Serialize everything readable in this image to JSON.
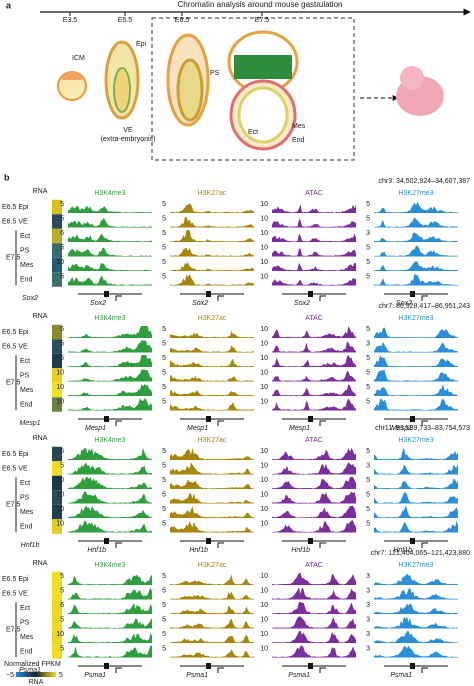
{
  "panel_a": {
    "label": "a",
    "title": "Chromatin analysis around mouse gastrulation",
    "stages": [
      "E3.5",
      "E5.5",
      "E6.5",
      "E7.5"
    ],
    "icm": "ICM",
    "epi": "Epi",
    "ve": [
      "VE",
      "(extra-embryonic)"
    ],
    "ps": "PS",
    "ect": "Ect",
    "mes": "Mes",
    "end": "End"
  },
  "panel_b": {
    "label": "b",
    "rna": "RNA",
    "columns": [
      {
        "name": "H3K4me3",
        "color": "#2e9e3e"
      },
      {
        "name": "H3K27ac",
        "color": "#a8860c"
      },
      {
        "name": "ATAC",
        "color": "#7b2f9e"
      },
      {
        "name": "H3K27me3",
        "color": "#2a8fd8"
      }
    ],
    "rows": [
      "E6.5 Epi",
      "E6.5 VE",
      "Ect",
      "PS",
      "Mes",
      "End"
    ],
    "group": "E7.5",
    "blocks": [
      {
        "locus": "chr3: 34,502,924–34,607,387",
        "gene": "Sox2",
        "rna_colors": [
          "#d8c21a",
          "#2c4a5a",
          "#b8b02a",
          "#3a6a6a",
          "#1f5e74",
          "#3c7070"
        ],
        "scales": [
          [
            5,
            5,
            6,
            5,
            10,
            5
          ],
          [
            5,
            5,
            5,
            5,
            5,
            5
          ],
          [
            10,
            10,
            10,
            10,
            10,
            10
          ],
          [
            5,
            5,
            3,
            5,
            5,
            5
          ]
        ]
      },
      {
        "locus": "chr7: 86,928,417–86,951,243",
        "gene": "Mesp1",
        "rna_colors": [
          "#8a8a2a",
          "#2e4e5e",
          "#1f3a4a",
          "#e8d21a",
          "#f2e022",
          "#6a8040"
        ],
        "scales": [
          [
            5,
            5,
            5,
            10,
            10,
            10
          ],
          [
            5,
            5,
            5,
            5,
            5,
            5
          ],
          [
            10,
            10,
            10,
            10,
            10,
            10
          ],
          [
            5,
            3,
            5,
            5,
            5,
            5
          ]
        ]
      },
      {
        "locus": "chr11: 83,589,733–83,754,573",
        "gene": "Hnf1b",
        "rna_colors": [
          "#2a4656",
          "#f0dc20",
          "#1e3a48",
          "#2a4a5a",
          "#223e4e",
          "#e0cc22"
        ],
        "scales": [
          [
            5,
            5,
            10,
            10,
            10,
            10
          ],
          [
            5,
            5,
            5,
            5,
            5,
            5
          ],
          [
            10,
            10,
            10,
            10,
            10,
            10
          ],
          [
            5,
            3,
            5,
            5,
            5,
            5
          ]
        ]
      },
      {
        "locus": "chr7: 121,404,065–121,423,880",
        "gene": "Psma1",
        "rna_colors": [
          "#f0dc20",
          "#f2de22",
          "#eed81e",
          "#f0da20",
          "#ecd620",
          "#f0dc22"
        ],
        "scales": [
          [
            5,
            5,
            6,
            5,
            10,
            5
          ],
          [
            5,
            5,
            5,
            5,
            5,
            5
          ],
          [
            10,
            10,
            10,
            10,
            10,
            10
          ],
          [
            3,
            3,
            3,
            3,
            3,
            3
          ]
        ]
      }
    ],
    "legend": {
      "title": "Normalized FPKM",
      "min": "−5",
      "max": "5",
      "caption": "RNA"
    }
  }
}
